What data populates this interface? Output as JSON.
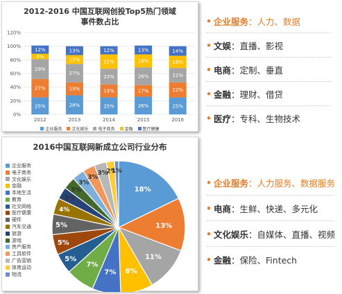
{
  "top_chart": {
    "title_line1": "2012-2016 中国互联网创投Top5热门领域",
    "title_line2": "事件数占比"
  },
  "bottom_chart": {
    "title": "2016中国互联网新成立公司行业分布"
  },
  "callouts_top": [
    {
      "key": "企业服务",
      "sep": "：",
      "desc": "人力、数据",
      "highlight": true
    },
    {
      "key": "文娱",
      "sep": "：",
      "desc": "直播、影视",
      "highlight": false
    },
    {
      "key": "电商",
      "sep": "：",
      "desc": "定制、垂直",
      "highlight": false
    },
    {
      "key": "金融",
      "sep": "：",
      "desc": "理财、借贷",
      "highlight": false
    },
    {
      "key": "医疗",
      "sep": "：",
      "desc": "专科、生物技术",
      "highlight": false
    }
  ],
  "callouts_bottom": [
    {
      "key": "企业服务",
      "sep": "：",
      "desc": "人力服务、数据服务",
      "highlight": true
    },
    {
      "key": "电商",
      "sep": "：",
      "desc": "生鲜、快递、多元化",
      "highlight": false
    },
    {
      "key": "文化娱乐",
      "sep": "：",
      "desc": "自媒体、直播、视频",
      "highlight": false
    },
    {
      "key": "金融",
      "sep": "：",
      "desc": "保险、Fintech",
      "highlight": false
    }
  ],
  "colors": {
    "accent_orange": "#e57c26",
    "blue": "#5b9bd5",
    "orange": "#ed7d31",
    "gray": "#a5a5a5",
    "gold": "#ffc000",
    "navy": "#4472c4"
  },
  "chart_data": [
    {
      "type": "bar",
      "stacked": true,
      "percent": true,
      "title": "2012-2016 中国互联网创投Top5热门领域事件数占比",
      "categories": [
        "2012",
        "2013",
        "2014",
        "2015",
        "2016"
      ],
      "ylim": [
        0,
        120
      ],
      "yticks": [
        "0%",
        "20%",
        "40%",
        "60%",
        "80%",
        "100%",
        "120%"
      ],
      "legend_position": "bottom",
      "series": [
        {
          "name": "企业服务",
          "color": "#5b9bd5",
          "values": [
            25,
            28,
            25,
            26,
            25
          ]
        },
        {
          "name": "文化娱乐",
          "color": "#ed7d31",
          "values": [
            27,
            19,
            19,
            17,
            22
          ]
        },
        {
          "name": "电子商务",
          "color": "#a5a5a5",
          "values": [
            29,
            27,
            23,
            26,
            21
          ]
        },
        {
          "name": "金融",
          "color": "#ffc000",
          "values": [
            8,
            13,
            21,
            19,
            18
          ]
        },
        {
          "name": "医疗健康",
          "color": "#4472c4",
          "values": [
            12,
            13,
            12,
            13,
            14
          ]
        }
      ]
    },
    {
      "type": "pie",
      "title": "2016中国互联网新成立公司行业分布",
      "legend_position": "left",
      "slices": [
        {
          "name": "企业服务",
          "value": 18,
          "label": "18%",
          "color": "#5b9bd5"
        },
        {
          "name": "电子商务",
          "value": 13,
          "label": "13%",
          "color": "#ed7d31"
        },
        {
          "name": "文化娱乐",
          "value": 11,
          "label": "11%",
          "color": "#a5a5a5"
        },
        {
          "name": "金融",
          "value": 8,
          "label": "8%",
          "color": "#ffc000"
        },
        {
          "name": "本地生活",
          "value": 7,
          "label": "7%",
          "color": "#4472c4"
        },
        {
          "name": "教育",
          "value": 7,
          "label": "7%",
          "color": "#70ad47"
        },
        {
          "name": "社交网络",
          "value": 5,
          "label": "5%",
          "color": "#255e91"
        },
        {
          "name": "医疗健康",
          "value": 5,
          "label": "5%",
          "color": "#9e480e"
        },
        {
          "name": "硬件",
          "value": 5,
          "label": "5%",
          "color": "#636363"
        },
        {
          "name": "汽车交通",
          "value": 4,
          "label": "4%",
          "color": "#997300"
        },
        {
          "name": "旅游",
          "value": 3,
          "label": "3%",
          "color": "#264478"
        },
        {
          "name": "游戏",
          "value": 3,
          "label": "3%",
          "color": "#43682b"
        },
        {
          "name": "房产服务",
          "value": 3,
          "label": "3%",
          "color": "#7cafdd"
        },
        {
          "name": "工具软件",
          "value": 3,
          "label": "3%",
          "color": "#f1975a"
        },
        {
          "name": "广告营销",
          "value": 3,
          "label": "3%",
          "color": "#b7b7b7"
        },
        {
          "name": "体育运动",
          "value": 2,
          "label": "2%",
          "color": "#ffcd33"
        },
        {
          "name": "物流",
          "value": 1,
          "label": "1%",
          "color": "#698ed0"
        }
      ]
    }
  ]
}
